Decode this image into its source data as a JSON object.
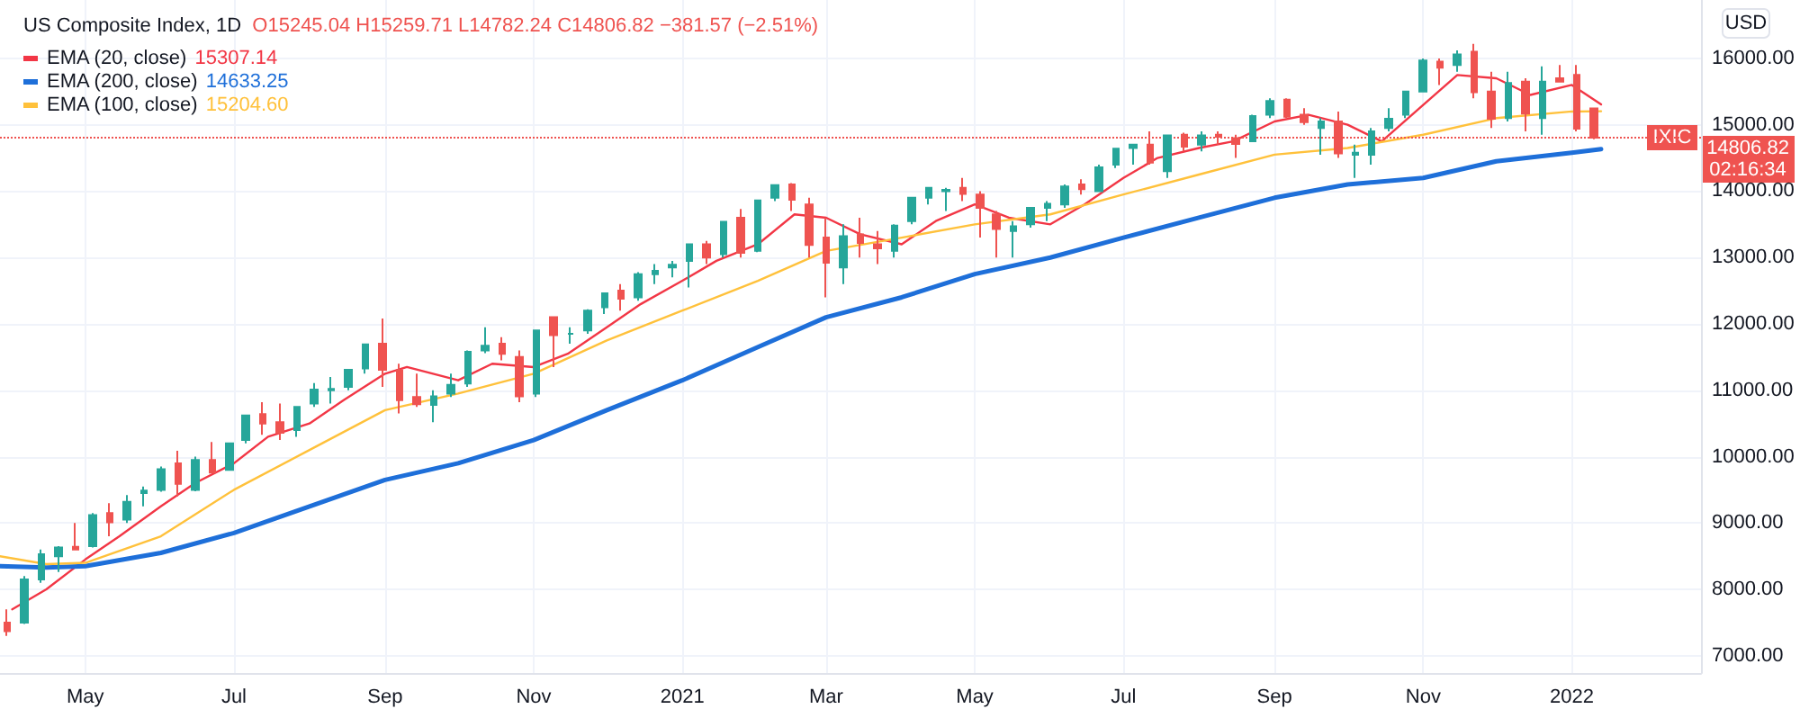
{
  "chart_data": {
    "type": "candlestick",
    "title": "US Composite Index, 1D",
    "subtitle": "O15245.04 H15259.71 L14782.24 C14806.82 −381.57 (−2.51%)",
    "x": [
      "2020-03-30",
      "2020-04-06",
      "2020-04-13",
      "2020-04-20",
      "2020-04-27",
      "2020-05-04",
      "2020-05-11",
      "2020-05-18",
      "2020-05-25",
      "2020-06-01",
      "2020-06-08",
      "2020-06-15",
      "2020-06-22",
      "2020-06-29",
      "2020-07-06",
      "2020-07-13",
      "2020-07-20",
      "2020-07-27",
      "2020-08-03",
      "2020-08-10",
      "2020-08-17",
      "2020-08-24",
      "2020-08-31",
      "2020-09-07",
      "2020-09-14",
      "2020-09-21",
      "2020-09-28",
      "2020-10-05",
      "2020-10-12",
      "2020-10-19",
      "2020-10-26",
      "2020-11-02",
      "2020-11-09",
      "2020-11-16",
      "2020-11-23",
      "2020-11-30",
      "2020-12-07",
      "2020-12-14",
      "2020-12-21",
      "2020-12-28",
      "2021-01-04",
      "2021-01-11",
      "2021-01-18",
      "2021-01-25",
      "2021-02-01",
      "2021-02-08",
      "2021-02-15",
      "2021-02-22",
      "2021-03-01",
      "2021-03-08",
      "2021-03-15",
      "2021-03-22",
      "2021-03-29",
      "2021-04-05",
      "2021-04-12",
      "2021-04-19",
      "2021-04-26",
      "2021-05-03",
      "2021-05-10",
      "2021-05-17",
      "2021-05-24",
      "2021-05-31",
      "2021-06-07",
      "2021-06-14",
      "2021-06-21",
      "2021-06-28",
      "2021-07-05",
      "2021-07-12",
      "2021-07-19",
      "2021-07-26",
      "2021-08-02",
      "2021-08-09",
      "2021-08-16",
      "2021-08-23",
      "2021-08-30",
      "2021-09-06",
      "2021-09-13",
      "2021-09-20",
      "2021-09-27",
      "2021-10-04",
      "2021-10-11",
      "2021-10-18",
      "2021-10-25",
      "2021-11-01",
      "2021-11-08",
      "2021-11-15",
      "2021-11-22",
      "2021-11-29",
      "2021-12-06",
      "2021-12-13",
      "2021-12-20",
      "2021-12-27",
      "2022-01-03",
      "2022-01-10"
    ],
    "ohlc": [
      [
        7500,
        7700,
        7300,
        7370
      ],
      [
        7500,
        8200,
        7480,
        8150
      ],
      [
        8150,
        8600,
        8100,
        8530
      ],
      [
        8500,
        8650,
        8260,
        8630
      ],
      [
        8640,
        9000,
        8600,
        8600
      ],
      [
        8650,
        9150,
        8630,
        9120
      ],
      [
        9150,
        9300,
        8800,
        9010
      ],
      [
        9050,
        9420,
        9000,
        9320
      ],
      [
        9450,
        9550,
        9250,
        9490
      ],
      [
        9500,
        9850,
        9470,
        9810
      ],
      [
        9900,
        10090,
        9400,
        9590
      ],
      [
        9500,
        10000,
        9480,
        9950
      ],
      [
        9950,
        10220,
        9750,
        9760
      ],
      [
        9800,
        10210,
        9800,
        10200
      ],
      [
        10250,
        10630,
        10200,
        10620
      ],
      [
        10640,
        10820,
        10330,
        10500
      ],
      [
        10520,
        10800,
        10250,
        10360
      ],
      [
        10400,
        10750,
        10300,
        10750
      ],
      [
        10800,
        11110,
        10750,
        11010
      ],
      [
        11000,
        11200,
        10800,
        11020
      ],
      [
        11050,
        11320,
        11000,
        11310
      ],
      [
        11330,
        11700,
        11250,
        11690
      ],
      [
        11700,
        12080,
        11050,
        11310
      ],
      [
        11300,
        11400,
        10650,
        10850
      ],
      [
        10900,
        11250,
        10750,
        10790
      ],
      [
        10780,
        11000,
        10520,
        10910
      ],
      [
        10950,
        11250,
        10900,
        11080
      ],
      [
        11100,
        11600,
        11050,
        11580
      ],
      [
        11600,
        11950,
        11560,
        11670
      ],
      [
        11700,
        11800,
        11450,
        11550
      ],
      [
        11500,
        11600,
        10820,
        10910
      ],
      [
        10950,
        11900,
        10900,
        11900
      ],
      [
        12100,
        12110,
        11350,
        11830
      ],
      [
        11850,
        11950,
        11700,
        11850
      ],
      [
        11900,
        12220,
        11850,
        12200
      ],
      [
        12250,
        12470,
        12150,
        12460
      ],
      [
        12500,
        12600,
        12200,
        12380
      ],
      [
        12400,
        12780,
        12350,
        12750
      ],
      [
        12750,
        12900,
        12600,
        12800
      ],
      [
        12850,
        12950,
        12700,
        12890
      ],
      [
        12950,
        13200,
        12550,
        13200
      ],
      [
        13200,
        13250,
        12900,
        13000
      ],
      [
        13050,
        13550,
        13000,
        13540
      ],
      [
        13600,
        13730,
        13000,
        13070
      ],
      [
        13100,
        13860,
        13080,
        13860
      ],
      [
        13900,
        14100,
        13850,
        14090
      ],
      [
        14100,
        14120,
        13700,
        13870
      ],
      [
        13800,
        13900,
        13000,
        13190
      ],
      [
        13300,
        13600,
        12400,
        12920
      ],
      [
        12850,
        13500,
        12600,
        13320
      ],
      [
        13350,
        13600,
        13000,
        13220
      ],
      [
        13200,
        13400,
        12900,
        13140
      ],
      [
        13100,
        13500,
        13000,
        13480
      ],
      [
        13550,
        13900,
        13500,
        13900
      ],
      [
        13900,
        14050,
        13800,
        14050
      ],
      [
        14000,
        14050,
        13700,
        14020
      ],
      [
        14050,
        14200,
        13850,
        13960
      ],
      [
        13950,
        14000,
        13300,
        13750
      ],
      [
        13650,
        13700,
        13000,
        13430
      ],
      [
        13400,
        13550,
        13000,
        13470
      ],
      [
        13500,
        13750,
        13450,
        13750
      ],
      [
        13750,
        13850,
        13550,
        13810
      ],
      [
        13800,
        14100,
        13750,
        14070
      ],
      [
        14100,
        14180,
        13950,
        14030
      ],
      [
        14000,
        14400,
        14000,
        14360
      ],
      [
        14400,
        14650,
        14350,
        14640
      ],
      [
        14650,
        14700,
        14400,
        14700
      ],
      [
        14700,
        14900,
        14400,
        14430
      ],
      [
        14300,
        14850,
        14200,
        14840
      ],
      [
        14850,
        14880,
        14600,
        14670
      ],
      [
        14700,
        14900,
        14600,
        14840
      ],
      [
        14850,
        14900,
        14700,
        14820
      ],
      [
        14800,
        14850,
        14500,
        14710
      ],
      [
        14750,
        15150,
        14750,
        15130
      ],
      [
        15150,
        15400,
        15100,
        15360
      ],
      [
        15380,
        15400,
        15100,
        15120
      ],
      [
        15150,
        15250,
        15000,
        15040
      ],
      [
        14950,
        15100,
        14550,
        15050
      ],
      [
        15050,
        15200,
        14500,
        14570
      ],
      [
        14550,
        14700,
        14200,
        14580
      ],
      [
        14550,
        14950,
        14400,
        14900
      ],
      [
        14950,
        15250,
        14900,
        15090
      ],
      [
        15150,
        15500,
        15100,
        15500
      ],
      [
        15500,
        16000,
        15500,
        15970
      ],
      [
        15950,
        16000,
        15600,
        15860
      ],
      [
        15900,
        16120,
        15800,
        16060
      ],
      [
        16100,
        16220,
        15400,
        15490
      ],
      [
        15500,
        15800,
        14950,
        15090
      ],
      [
        15100,
        15800,
        15050,
        15630
      ],
      [
        15650,
        15700,
        14900,
        15170
      ],
      [
        15100,
        15880,
        14850,
        15650
      ],
      [
        15700,
        15900,
        15640,
        15650
      ],
      [
        15750,
        15900,
        14900,
        14940
      ],
      [
        15245.04,
        15259.71,
        14782.24,
        14806.82
      ]
    ],
    "series": [
      {
        "type": "line",
        "name": "EMA (20, close)",
        "color": "#f23645",
        "x": [
          "2020-04-01",
          "2020-04-15",
          "2020-05-01",
          "2020-05-15",
          "2020-06-01",
          "2020-06-15",
          "2020-07-01",
          "2020-07-15",
          "2020-08-01",
          "2020-08-15",
          "2020-09-01",
          "2020-09-10",
          "2020-10-01",
          "2020-10-15",
          "2020-11-01",
          "2020-11-15",
          "2020-12-01",
          "2020-12-15",
          "2021-01-01",
          "2021-01-15",
          "2021-02-01",
          "2021-02-16",
          "2021-03-01",
          "2021-03-15",
          "2021-04-01",
          "2021-04-15",
          "2021-05-01",
          "2021-05-15",
          "2021-06-01",
          "2021-06-15",
          "2021-07-01",
          "2021-07-15",
          "2021-08-01",
          "2021-08-15",
          "2021-09-01",
          "2021-09-15",
          "2021-10-01",
          "2021-10-15",
          "2021-11-01",
          "2021-11-15",
          "2021-12-01",
          "2021-12-15",
          "2022-01-01",
          "2022-01-13"
        ],
        "values": [
          7700,
          8000,
          8450,
          8800,
          9250,
          9600,
          9900,
          10300,
          10500,
          10850,
          11250,
          11350,
          11150,
          11400,
          11350,
          11550,
          11950,
          12300,
          12650,
          12950,
          13200,
          13650,
          13600,
          13350,
          13200,
          13550,
          13800,
          13600,
          13500,
          13800,
          14200,
          14500,
          14650,
          14750,
          15050,
          15150,
          15000,
          14750,
          15300,
          15750,
          15700,
          15450,
          15600,
          15307.14
        ]
      },
      {
        "type": "line",
        "name": "EMA (200, close)",
        "color": "#1e6fd9",
        "x": [
          "2020-03-27",
          "2020-04-15",
          "2020-05-01",
          "2020-06-01",
          "2020-07-01",
          "2020-08-01",
          "2020-09-01",
          "2020-10-01",
          "2020-11-01",
          "2020-12-01",
          "2021-01-01",
          "2021-02-01",
          "2021-03-01",
          "2021-04-01",
          "2021-05-01",
          "2021-06-01",
          "2021-07-01",
          "2021-08-01",
          "2021-09-01",
          "2021-10-01",
          "2021-11-01",
          "2021-12-01",
          "2022-01-01",
          "2022-01-13"
        ],
        "values": [
          8350,
          8330,
          8350,
          8550,
          8850,
          9250,
          9650,
          9900,
          10250,
          10700,
          11150,
          11650,
          12100,
          12400,
          12750,
          13000,
          13300,
          13600,
          13900,
          14100,
          14200,
          14450,
          14580,
          14633.25
        ]
      },
      {
        "type": "line",
        "name": "EMA (100, close)",
        "color": "#ffc13b",
        "x": [
          "2020-03-27",
          "2020-04-15",
          "2020-05-01",
          "2020-06-01",
          "2020-07-01",
          "2020-08-01",
          "2020-09-01",
          "2020-10-01",
          "2020-11-01",
          "2020-12-01",
          "2021-01-01",
          "2021-02-01",
          "2021-03-01",
          "2021-04-01",
          "2021-05-01",
          "2021-06-01",
          "2021-07-01",
          "2021-08-01",
          "2021-09-01",
          "2021-10-01",
          "2021-11-01",
          "2021-12-01",
          "2022-01-01",
          "2022-01-13"
        ],
        "values": [
          8500,
          8380,
          8400,
          8800,
          9500,
          10100,
          10700,
          10950,
          11250,
          11750,
          12200,
          12650,
          13100,
          13300,
          13500,
          13650,
          13950,
          14250,
          14550,
          14650,
          14850,
          15100,
          15200,
          15204.6
        ]
      }
    ],
    "xlim": [
      "2020-03-27",
      "2022-02-23"
    ],
    "xticks": [
      {
        "value": "2020-05-01",
        "label": "May"
      },
      {
        "value": "2020-07-01",
        "label": "Jul"
      },
      {
        "value": "2020-09-01",
        "label": "Sep"
      },
      {
        "value": "2020-11-01",
        "label": "Nov"
      },
      {
        "value": "2021-01-01",
        "label": "2021"
      },
      {
        "value": "2021-03-01",
        "label": "Mar"
      },
      {
        "value": "2021-05-01",
        "label": "May"
      },
      {
        "value": "2021-07-01",
        "label": "Jul"
      },
      {
        "value": "2021-09-01",
        "label": "Sep"
      },
      {
        "value": "2021-11-01",
        "label": "Nov"
      },
      {
        "value": "2022-01-01",
        "label": "2022"
      }
    ],
    "ylim": [
      6740,
      16880
    ],
    "yticks": [
      {
        "value": 7000,
        "label": "7000.00"
      },
      {
        "value": 8000,
        "label": "8000.00"
      },
      {
        "value": 9000,
        "label": "9000.00"
      },
      {
        "value": 10000,
        "label": "10000.00"
      },
      {
        "value": 11000,
        "label": "11000.00"
      },
      {
        "value": 12000,
        "label": "12000.00"
      },
      {
        "value": 13000,
        "label": "13000.00"
      },
      {
        "value": 14000,
        "label": "14000.00"
      },
      {
        "value": 15000,
        "label": "15000.00"
      },
      {
        "value": 16000,
        "label": "16000.00"
      }
    ],
    "ref_lines": [
      {
        "axis": "y",
        "value": 14806.82,
        "label": "IXIC",
        "color": "#ef5350",
        "line_style": "dotted"
      }
    ],
    "annotations": [
      "15307.14",
      "14633.25",
      "15204.60",
      "14806.82",
      "02:16:34",
      "USD"
    ],
    "grid": true,
    "legend": "top left",
    "marker": "none",
    "line_style": "solid"
  }
}
